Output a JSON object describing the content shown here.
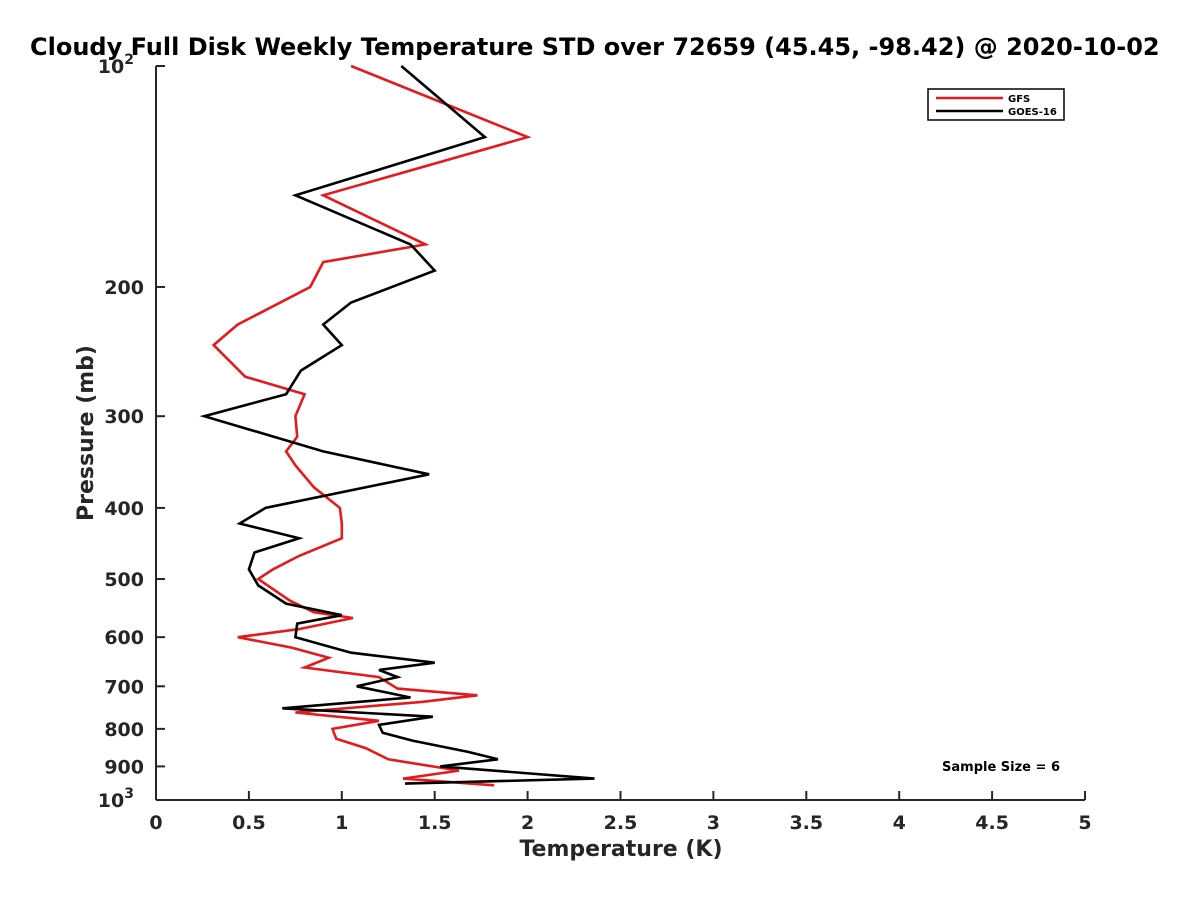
{
  "chart_data": {
    "type": "line",
    "title": "Cloudy Full Disk Weekly Temperature STD over 72659 (45.45, -98.42) @ 2020-10-02",
    "xlabel": "Temperature (K)",
    "ylabel": "Pressure (mb)",
    "xlim": [
      0,
      5
    ],
    "ylim": [
      100,
      1000
    ],
    "y_scale": "log",
    "y_reversed": true,
    "grid": false,
    "x_ticks": [
      "0",
      "0.5",
      "1",
      "1.5",
      "2",
      "2.5",
      "3",
      "3.5",
      "4",
      "4.5",
      "5"
    ],
    "y_ticks": [
      {
        "value": 100,
        "base": "10",
        "exp": "2"
      },
      {
        "value": 200,
        "label": "200"
      },
      {
        "value": 300,
        "label": "300"
      },
      {
        "value": 400,
        "label": "400"
      },
      {
        "value": 500,
        "label": "500"
      },
      {
        "value": 600,
        "label": "600"
      },
      {
        "value": 700,
        "label": "700"
      },
      {
        "value": 800,
        "label": "800"
      },
      {
        "value": 900,
        "label": "900"
      },
      {
        "value": 1000,
        "base": "10",
        "exp": "3"
      }
    ],
    "legend_position": "top-right",
    "series": [
      {
        "name": "GFS",
        "color": "#e41a1c",
        "points": [
          [
            1.05,
            100
          ],
          [
            2.0,
            125
          ],
          [
            0.9,
            150
          ],
          [
            1.45,
            175
          ],
          [
            0.9,
            185
          ],
          [
            0.83,
            200
          ],
          [
            0.44,
            225
          ],
          [
            0.31,
            240
          ],
          [
            0.48,
            265
          ],
          [
            0.8,
            280
          ],
          [
            0.75,
            300
          ],
          [
            0.76,
            320
          ],
          [
            0.7,
            335
          ],
          [
            0.75,
            350
          ],
          [
            0.85,
            375
          ],
          [
            0.99,
            400
          ],
          [
            1.0,
            420
          ],
          [
            1.0,
            440
          ],
          [
            0.77,
            465
          ],
          [
            0.63,
            485
          ],
          [
            0.55,
            500
          ],
          [
            0.72,
            535
          ],
          [
            0.85,
            555
          ],
          [
            1.06,
            565
          ],
          [
            0.77,
            585
          ],
          [
            0.44,
            600
          ],
          [
            0.73,
            620
          ],
          [
            0.93,
            640
          ],
          [
            0.8,
            660
          ],
          [
            1.2,
            680
          ],
          [
            1.3,
            705
          ],
          [
            1.73,
            720
          ],
          [
            1.43,
            735
          ],
          [
            0.75,
            760
          ],
          [
            1.2,
            780
          ],
          [
            0.95,
            800
          ],
          [
            0.97,
            825
          ],
          [
            1.13,
            850
          ],
          [
            1.25,
            880
          ],
          [
            1.63,
            912
          ],
          [
            1.33,
            935
          ],
          [
            1.82,
            955
          ]
        ]
      },
      {
        "name": "GOES-16",
        "color": "#000000",
        "points": [
          [
            1.32,
            100
          ],
          [
            1.77,
            125
          ],
          [
            0.75,
            150
          ],
          [
            1.37,
            175
          ],
          [
            1.5,
            190
          ],
          [
            1.05,
            210
          ],
          [
            0.9,
            225
          ],
          [
            1.0,
            240
          ],
          [
            0.78,
            260
          ],
          [
            0.7,
            280
          ],
          [
            0.26,
            300
          ],
          [
            0.9,
            335
          ],
          [
            1.47,
            360
          ],
          [
            0.59,
            400
          ],
          [
            0.45,
            420
          ],
          [
            0.77,
            440
          ],
          [
            0.53,
            460
          ],
          [
            0.5,
            485
          ],
          [
            0.55,
            510
          ],
          [
            0.7,
            540
          ],
          [
            1.0,
            560
          ],
          [
            0.76,
            575
          ],
          [
            0.75,
            600
          ],
          [
            1.05,
            630
          ],
          [
            1.5,
            650
          ],
          [
            1.2,
            665
          ],
          [
            1.3,
            680
          ],
          [
            1.08,
            700
          ],
          [
            1.37,
            725
          ],
          [
            0.68,
            750
          ],
          [
            1.49,
            770
          ],
          [
            1.2,
            790
          ],
          [
            1.22,
            810
          ],
          [
            1.38,
            830
          ],
          [
            1.68,
            860
          ],
          [
            1.84,
            880
          ],
          [
            1.53,
            900
          ],
          [
            2.36,
            935
          ],
          [
            1.34,
            950
          ]
        ]
      }
    ],
    "annotations": [
      "Sample Size = 6"
    ]
  }
}
